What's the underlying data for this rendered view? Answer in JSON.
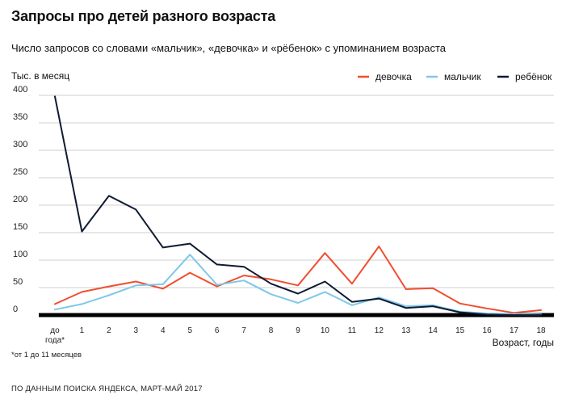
{
  "title": "Запросы про детей разного возраста",
  "subtitle": "Число запросов со словами «мальчик», «девочка» и «рёбенок» с упоминанием возраста",
  "footnote": "*от 1 до 11 месяцев",
  "source": "ПО ДАННЫМ ПОИСКА ЯНДЕКСА, МАРТ-МАЙ 2017",
  "chart_data": {
    "type": "line",
    "ylabel": "Тыс. в месяц",
    "xlabel": "Возраст, годы",
    "ylim": [
      0,
      400
    ],
    "yticks": [
      "0",
      "50",
      "100",
      "150",
      "200",
      "250",
      "300",
      "350",
      "400"
    ],
    "ytick_values": [
      0,
      50,
      100,
      150,
      200,
      250,
      300,
      350,
      400
    ],
    "first_category_lines": [
      "до",
      "года*"
    ],
    "categories": [
      "до года*",
      "1",
      "2",
      "3",
      "4",
      "5",
      "6",
      "7",
      "8",
      "9",
      "10",
      "11",
      "12",
      "13",
      "14",
      "15",
      "16",
      "17",
      "18"
    ],
    "legend_position": "top-right",
    "series": [
      {
        "name": "девочка",
        "color": "#f04e2f",
        "values": [
          20,
          42,
          52,
          61,
          48,
          77,
          52,
          72,
          65,
          54,
          113,
          57,
          125,
          47,
          49,
          21,
          12,
          4,
          9
        ]
      },
      {
        "name": "мальчик",
        "color": "#7ec8ea",
        "values": [
          10,
          20,
          36,
          54,
          56,
          110,
          55,
          63,
          38,
          22,
          42,
          18,
          32,
          16,
          18,
          6,
          3,
          2,
          1
        ]
      },
      {
        "name": "ребёнок",
        "color": "#0e1b33",
        "values": [
          398,
          152,
          217,
          192,
          123,
          130,
          92,
          88,
          57,
          39,
          61,
          24,
          30,
          13,
          16,
          5,
          1,
          0,
          0
        ]
      }
    ]
  }
}
